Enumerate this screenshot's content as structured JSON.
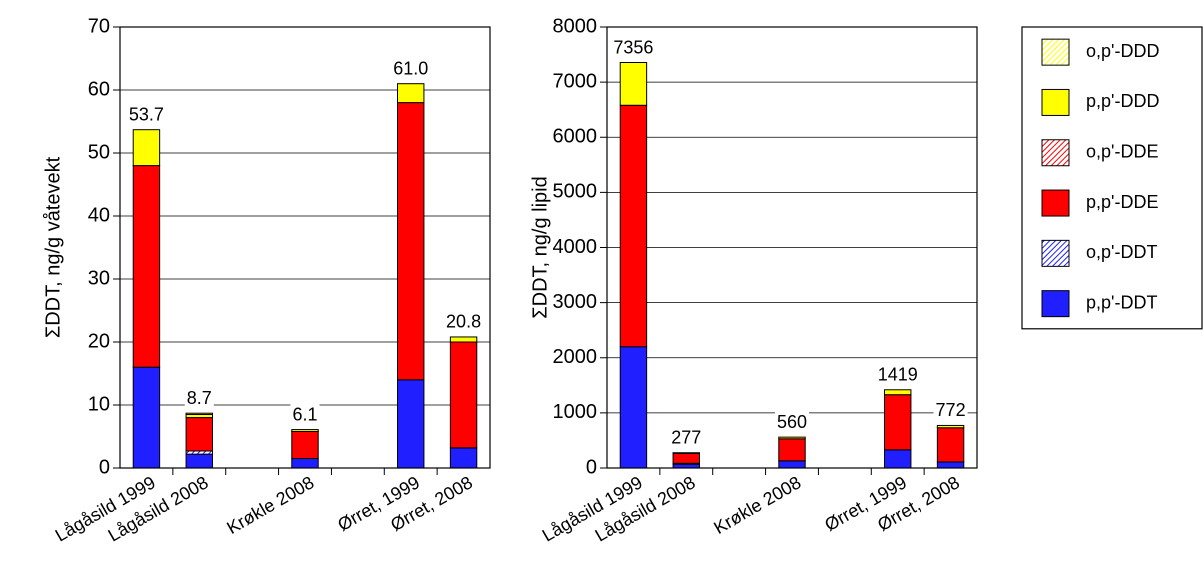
{
  "chart_data": [
    {
      "type": "stacked-bar",
      "y_label": "ΣDDT, ng/g våtevekt",
      "categories": [
        "Lågåsild 1999",
        "Lågåsild 2008",
        null,
        "Krøkle 2008",
        null,
        "Ørret, 1999",
        "Ørret, 2008"
      ],
      "series": [
        {
          "name": "p,p'-DDT",
          "color": "#1f1fff",
          "hatch": false,
          "values": [
            16,
            2.2,
            null,
            1.5,
            null,
            14,
            3.2
          ]
        },
        {
          "name": "o,p'-DDT",
          "color": "#1f1fff",
          "hatch": true,
          "values": [
            0,
            0.5,
            null,
            0,
            null,
            0,
            0
          ]
        },
        {
          "name": "p,p'-DDE",
          "color": "#ff0000",
          "hatch": false,
          "values": [
            32,
            5.3,
            null,
            4.3,
            null,
            44,
            16.8
          ]
        },
        {
          "name": "o,p'-DDE",
          "color": "#ff0000",
          "hatch": true,
          "values": [
            0,
            0,
            null,
            0,
            null,
            0,
            0
          ]
        },
        {
          "name": "p,p'-DDD",
          "color": "#ffff00",
          "hatch": false,
          "values": [
            5.7,
            0.5,
            null,
            0.3,
            null,
            3.0,
            0.8
          ]
        },
        {
          "name": "o,p'-DDD",
          "color": "#ffff00",
          "hatch": true,
          "values": [
            0,
            0.2,
            null,
            0,
            null,
            0,
            0
          ]
        }
      ],
      "totals": [
        53.7,
        8.7,
        null,
        6.1,
        null,
        61.0,
        20.8
      ],
      "total_labels": [
        "53.7",
        "8.7",
        null,
        "6.1",
        null,
        "61.0",
        "20.8"
      ],
      "ylim": [
        0,
        70
      ],
      "yticks": [
        0,
        10,
        20,
        30,
        40,
        50,
        60,
        70
      ],
      "grid": true
    },
    {
      "type": "stacked-bar",
      "y_label": "ΣDDT, ng/g lipid",
      "categories": [
        "Lågåsild 1999",
        "Lågåsild 2008",
        null,
        "Krøkle 2008",
        null,
        "Ørret, 1999",
        "Ørret, 2008"
      ],
      "series": [
        {
          "name": "p,p'-DDT",
          "color": "#1f1fff",
          "hatch": false,
          "values": [
            2200,
            70,
            null,
            130,
            null,
            330,
            110
          ]
        },
        {
          "name": "o,p'-DDT",
          "color": "#1f1fff",
          "hatch": true,
          "values": [
            0,
            15,
            null,
            0,
            null,
            0,
            0
          ]
        },
        {
          "name": "p,p'-DDE",
          "color": "#ff0000",
          "hatch": false,
          "values": [
            4380,
            180,
            null,
            400,
            null,
            1000,
            620
          ]
        },
        {
          "name": "o,p'-DDE",
          "color": "#ff0000",
          "hatch": true,
          "values": [
            0,
            0,
            null,
            0,
            null,
            0,
            0
          ]
        },
        {
          "name": "p,p'-DDD",
          "color": "#ffff00",
          "hatch": false,
          "values": [
            776,
            12,
            null,
            30,
            null,
            89,
            42
          ]
        },
        {
          "name": "o,p'-DDD",
          "color": "#ffff00",
          "hatch": true,
          "values": [
            0,
            0,
            null,
            0,
            null,
            0,
            0
          ]
        }
      ],
      "totals": [
        7356,
        277,
        null,
        560,
        null,
        1419,
        772
      ],
      "ylim": [
        0,
        8000
      ],
      "yticks": [
        0,
        1000,
        2000,
        3000,
        4000,
        5000,
        6000,
        7000,
        8000
      ],
      "grid": true,
      "legend": "right"
    }
  ]
}
